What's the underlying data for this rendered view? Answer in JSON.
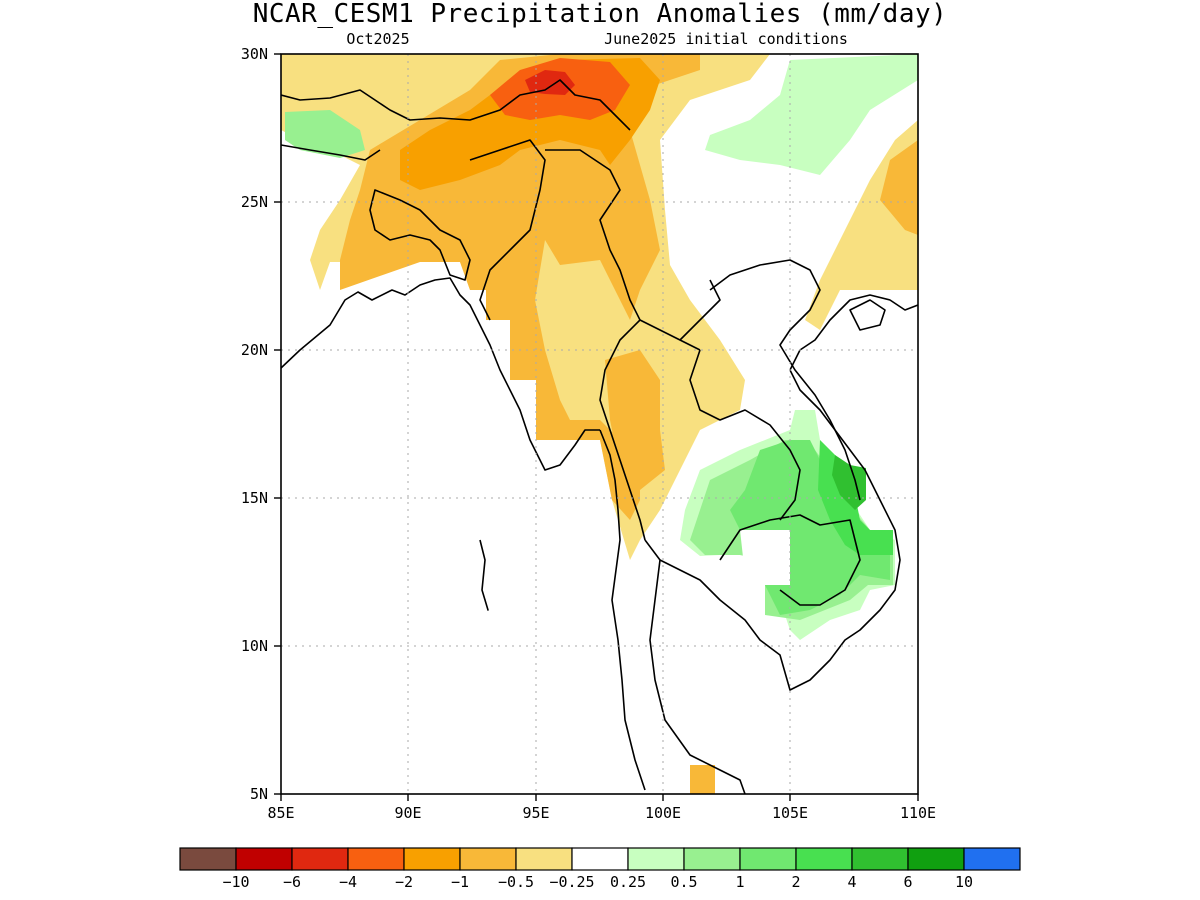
{
  "title": "NCAR_CESM1 Precipitation Anomalies (mm/day)",
  "subtitle_left": "Oct2025",
  "subtitle_right": "June2025 initial conditions",
  "x_ticks": [
    "85E",
    "90E",
    "95E",
    "100E",
    "105E",
    "110E"
  ],
  "y_ticks": [
    "30N",
    "25N",
    "20N",
    "15N",
    "10N",
    "5N"
  ],
  "colorbar": {
    "colors": [
      "#7a4a3e",
      "#c00000",
      "#e02810",
      "#f86010",
      "#f8a000",
      "#f8b838",
      "#f8e080",
      "#ffffff",
      "#c8ffc0",
      "#98f090",
      "#70e870",
      "#48e050",
      "#30c030",
      "#10a010",
      "#2070f0"
    ],
    "labels": [
      "-10",
      "-6",
      "-4",
      "-2",
      "-1",
      "-0.5",
      "-0.25",
      "0.25",
      "0.5",
      "1",
      "2",
      "4",
      "6",
      "10"
    ]
  },
  "map": {
    "type": "precipitation-anomaly-map",
    "lon_range": [
      85,
      110
    ],
    "lat_range": [
      5,
      30
    ],
    "grid": true,
    "anomaly_regions": [
      {
        "region": "southeast Tibet",
        "category": "-4 to -2",
        "color": "#f86010"
      },
      {
        "region": "eastern Tibet / Yunnan",
        "category": "-2 to -1",
        "color": "#f8a000"
      },
      {
        "region": "northeast India / Bangladesh / Myanmar",
        "category": "-1 to -0.5",
        "color": "#f8b838"
      },
      {
        "region": "northern Thailand / Laos edge",
        "category": "-0.5 to -0.25",
        "color": "#f8e080"
      },
      {
        "region": "Cambodia / southern Laos / central Vietnam",
        "category": "0.5 to 4",
        "color": "#70e870"
      },
      {
        "region": "southern China",
        "category": "0.25 to 0.5",
        "color": "#c8ffc0"
      },
      {
        "region": "Nepal",
        "category": "0.5 to 1",
        "color": "#98f090"
      }
    ]
  }
}
